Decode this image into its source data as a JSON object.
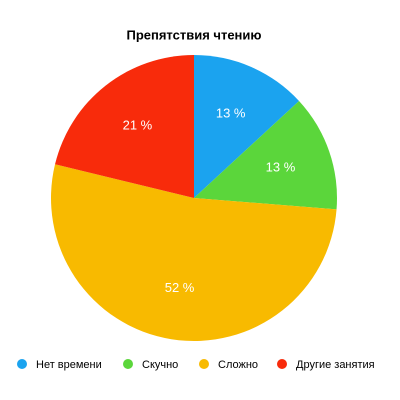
{
  "chart_data": {
    "type": "pie",
    "title": "Препятствия чтению",
    "categories": [
      "Нет времени",
      "Скучно",
      "Сложно",
      "Другие занятия"
    ],
    "values": [
      13,
      13,
      52,
      21
    ],
    "value_labels": [
      "13 %",
      "13 %",
      "52 %",
      "21 %"
    ],
    "colors": [
      "#1ba3ef",
      "#5bd63b",
      "#f8ba00",
      "#f82b0b"
    ]
  }
}
